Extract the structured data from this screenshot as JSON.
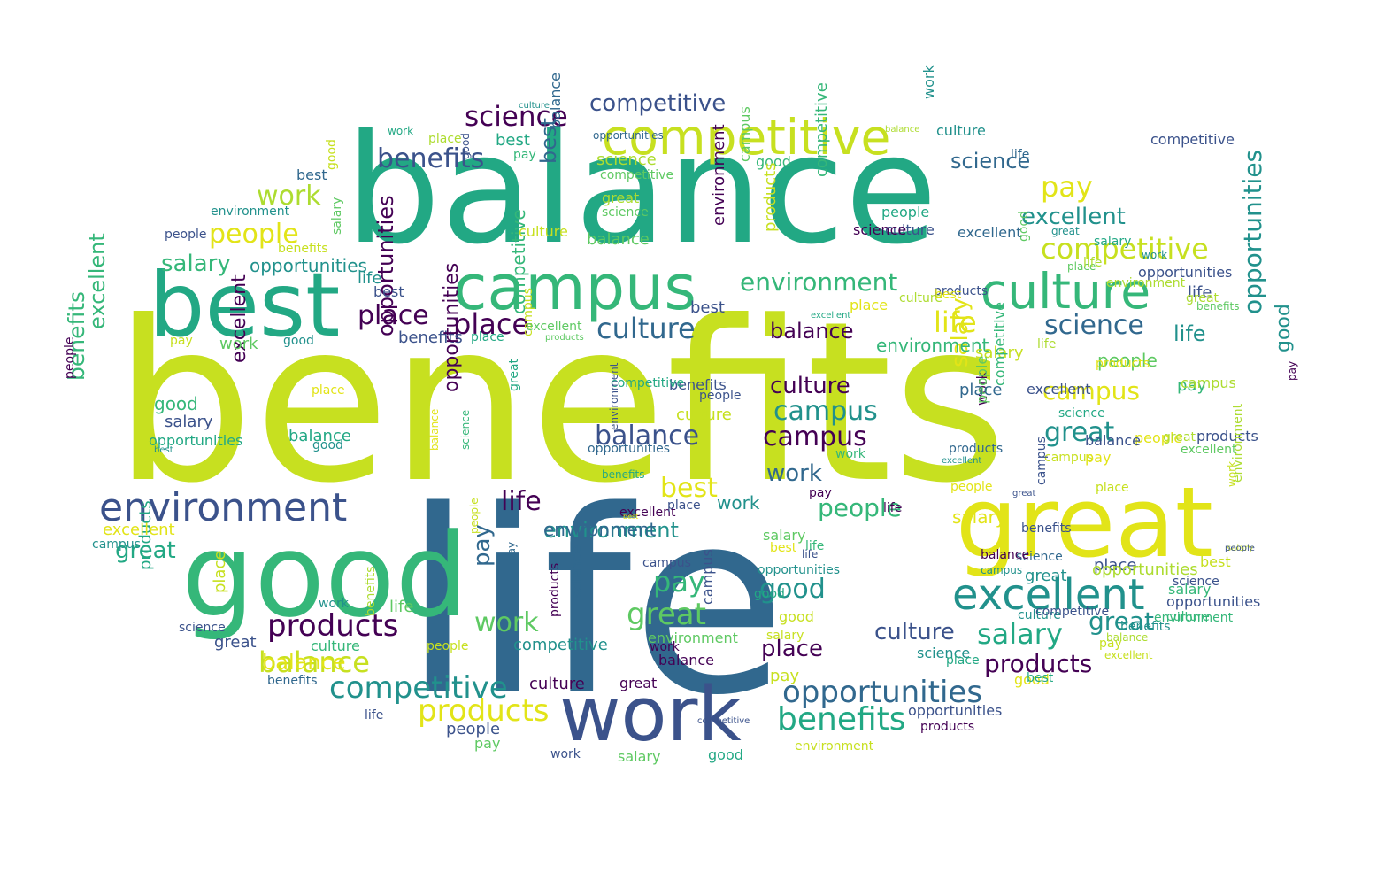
{
  "word_cloud": {
    "palette": {
      "c1": "#440154",
      "c2": "#3b528b",
      "c3": "#31688e",
      "c4": "#21918c",
      "c5": "#22a884",
      "c6": "#35b779",
      "c7": "#5ec962",
      "c8": "#addc30",
      "c9": "#c7e020",
      "c10": "#e2e418"
    },
    "words": [
      {
        "text": "benefits",
        "color": "c9"
      },
      {
        "text": "balance",
        "color": "c5"
      },
      {
        "text": "life",
        "color": "c3"
      },
      {
        "text": "good",
        "color": "c6"
      },
      {
        "text": "great",
        "color": "c10"
      },
      {
        "text": "best",
        "color": "c5"
      },
      {
        "text": "campus",
        "color": "c6"
      },
      {
        "text": "competitive",
        "color": "c9"
      },
      {
        "text": "work",
        "color": "c2"
      },
      {
        "text": "culture",
        "color": "c6"
      },
      {
        "text": "environment",
        "color": "c2"
      },
      {
        "text": "excellent",
        "color": "c4"
      },
      {
        "text": "competitive",
        "color": "c4"
      },
      {
        "text": "benefits",
        "color": "c5"
      },
      {
        "text": "products",
        "color": "c1"
      },
      {
        "text": "opportunities",
        "color": "c3"
      },
      {
        "text": "products",
        "color": "c10"
      },
      {
        "text": "opportunities",
        "color": "c4"
      },
      {
        "text": "balance",
        "color": "c9"
      },
      {
        "text": "competitive",
        "color": "c9"
      },
      {
        "text": "benefits",
        "color": "c6"
      },
      {
        "text": "science",
        "color": "c1"
      },
      {
        "text": "competitive",
        "color": "c2"
      },
      {
        "text": "benefits",
        "color": "c2"
      },
      {
        "text": "work",
        "color": "c8"
      },
      {
        "text": "people",
        "color": "c10"
      },
      {
        "text": "salary",
        "color": "c6"
      },
      {
        "text": "place",
        "color": "c1"
      },
      {
        "text": "place",
        "color": "c1"
      },
      {
        "text": "culture",
        "color": "c3"
      },
      {
        "text": "balance",
        "color": "c2"
      },
      {
        "text": "science",
        "color": "c3"
      },
      {
        "text": "pay",
        "color": "c10"
      },
      {
        "text": "excellent",
        "color": "c4"
      },
      {
        "text": "excellent",
        "color": "c6"
      },
      {
        "text": "environment",
        "color": "c6"
      },
      {
        "text": "life",
        "color": "c10"
      },
      {
        "text": "science",
        "color": "c3"
      },
      {
        "text": "life",
        "color": "c4"
      },
      {
        "text": "culture",
        "color": "c1"
      },
      {
        "text": "campus",
        "color": "c4"
      },
      {
        "text": "campus",
        "color": "c1"
      },
      {
        "text": "balance",
        "color": "c1"
      },
      {
        "text": "great",
        "color": "c4"
      },
      {
        "text": "campus",
        "color": "c10"
      },
      {
        "text": "life",
        "color": "c1"
      },
      {
        "text": "environment",
        "color": "c4"
      },
      {
        "text": "best",
        "color": "c10"
      },
      {
        "text": "people",
        "color": "c6"
      },
      {
        "text": "work",
        "color": "c3"
      },
      {
        "text": "pay",
        "color": "c6"
      },
      {
        "text": "great",
        "color": "c7"
      },
      {
        "text": "work",
        "color": "c7"
      },
      {
        "text": "good",
        "color": "c4"
      },
      {
        "text": "salary",
        "color": "c5"
      },
      {
        "text": "culture",
        "color": "c2"
      },
      {
        "text": "place",
        "color": "c1"
      },
      {
        "text": "good",
        "color": "c4"
      },
      {
        "text": "great",
        "color": "c4"
      },
      {
        "text": "products",
        "color": "c1"
      },
      {
        "text": "pay",
        "color": "c3"
      },
      {
        "text": "salary",
        "color": "c10"
      },
      {
        "text": "balance",
        "color": "c10"
      },
      {
        "text": "great",
        "color": "c5"
      },
      {
        "text": "opportunities",
        "color": "c1"
      },
      {
        "text": "good",
        "color": "c6"
      },
      {
        "text": "pay",
        "color": "c6"
      },
      {
        "text": "excellent",
        "color": "c1"
      },
      {
        "text": "competitive",
        "color": "c6"
      },
      {
        "text": "best",
        "color": "c3"
      },
      {
        "text": "benefits",
        "color": "c2"
      },
      {
        "text": "people",
        "color": "c1"
      },
      {
        "text": "opportunities",
        "color": "c1"
      },
      {
        "text": "environment",
        "color": "c1"
      },
      {
        "text": "work",
        "color": "c4"
      },
      {
        "text": "salary",
        "color": "c10"
      },
      {
        "text": "people",
        "color": "c7"
      },
      {
        "text": "environment",
        "color": "c3"
      },
      {
        "text": "environment",
        "color": "c6"
      },
      {
        "text": "competitive",
        "color": "c6"
      },
      {
        "text": "best",
        "color": "c5"
      },
      {
        "text": "best",
        "color": "c3"
      },
      {
        "text": "life",
        "color": "c1"
      },
      {
        "text": "place",
        "color": "c9"
      },
      {
        "text": "place",
        "color": "c2"
      },
      {
        "text": "science",
        "color": "c8"
      },
      {
        "text": "salary",
        "color": "c9"
      },
      {
        "text": "opportunities",
        "color": "c8"
      },
      {
        "text": "competitive",
        "color": "c6"
      },
      {
        "text": "people",
        "color": "c10"
      },
      {
        "text": "good",
        "color": "c6"
      },
      {
        "text": "work",
        "color": "c1"
      },
      {
        "text": "best",
        "color": "c2"
      },
      {
        "text": "balance",
        "color": "c2"
      },
      {
        "text": "culture",
        "color": "c2"
      },
      {
        "text": "excellent",
        "color": "c3"
      },
      {
        "text": "pay",
        "color": "c9"
      },
      {
        "text": "campus",
        "color": "c8"
      },
      {
        "text": "people",
        "color": "c7"
      },
      {
        "text": "products",
        "color": "c2"
      },
      {
        "text": "opportunities",
        "color": "c2"
      },
      {
        "text": "science",
        "color": "c2"
      },
      {
        "text": "good",
        "color": "c10"
      },
      {
        "text": "best",
        "color": "c9"
      },
      {
        "text": "competitive",
        "color": "c2"
      },
      {
        "text": "culture",
        "color": "c9"
      },
      {
        "text": "work",
        "color": "c4"
      },
      {
        "text": "life",
        "color": "c2"
      },
      {
        "text": "campus",
        "color": "c2"
      },
      {
        "text": "people",
        "color": "c5"
      },
      {
        "text": "salary",
        "color": "c6"
      },
      {
        "text": "pay",
        "color": "c9"
      },
      {
        "text": "great",
        "color": "c8"
      },
      {
        "text": "excellent",
        "color": "c7"
      },
      {
        "text": "environment",
        "color": "c8"
      },
      {
        "text": "good",
        "color": "c9"
      },
      {
        "text": "good",
        "color": "c2"
      },
      {
        "text": "place",
        "color": "c8"
      },
      {
        "text": "work",
        "color": "c5"
      },
      {
        "text": "culture",
        "color": "c4"
      },
      {
        "text": "life",
        "color": "c3"
      },
      {
        "text": "balance",
        "color": "c3"
      },
      {
        "text": "pay",
        "color": "c6"
      },
      {
        "text": "opportunities",
        "color": "c3"
      },
      {
        "text": "balance",
        "color": "c8"
      },
      {
        "text": "great",
        "color": "c4"
      },
      {
        "text": "science",
        "color": "c1"
      },
      {
        "text": "place",
        "color": "c7"
      },
      {
        "text": "culture",
        "color": "c8"
      },
      {
        "text": "products",
        "color": "c2"
      },
      {
        "text": "environment",
        "color": "c8"
      },
      {
        "text": "great",
        "color": "c8"
      },
      {
        "text": "benefits",
        "color": "c7"
      },
      {
        "text": "life",
        "color": "c8"
      },
      {
        "text": "products",
        "color": "c10"
      },
      {
        "text": "excellent",
        "color": "c2"
      },
      {
        "text": "science",
        "color": "c5"
      },
      {
        "text": "campus",
        "color": "c9"
      },
      {
        "text": "pay",
        "color": "c10"
      },
      {
        "text": "place",
        "color": "c9"
      },
      {
        "text": "people",
        "color": "c10"
      },
      {
        "text": "great",
        "color": "c2"
      },
      {
        "text": "campus",
        "color": "c2"
      },
      {
        "text": "work",
        "color": "c9"
      },
      {
        "text": "salary",
        "color": "c9"
      },
      {
        "text": "benefits",
        "color": "c2"
      },
      {
        "text": "culture",
        "color": "c4"
      },
      {
        "text": "balance",
        "color": "c8"
      },
      {
        "text": "excellent",
        "color": "c9"
      },
      {
        "text": "best",
        "color": "c5"
      },
      {
        "text": "opportunities",
        "color": "c2"
      },
      {
        "text": "products",
        "color": "c1"
      },
      {
        "text": "science",
        "color": "c4"
      },
      {
        "text": "place",
        "color": "c5"
      },
      {
        "text": "environment",
        "color": "c9"
      },
      {
        "text": "competitive",
        "color": "c2"
      },
      {
        "text": "good",
        "color": "c5"
      },
      {
        "text": "salary",
        "color": "c7"
      },
      {
        "text": "work",
        "color": "c2"
      },
      {
        "text": "pay",
        "color": "c7"
      },
      {
        "text": "people",
        "color": "c2"
      },
      {
        "text": "life",
        "color": "c2"
      },
      {
        "text": "benefits",
        "color": "c3"
      },
      {
        "text": "culture",
        "color": "c6"
      },
      {
        "text": "great",
        "color": "c2"
      },
      {
        "text": "science",
        "color": "c2"
      },
      {
        "text": "products",
        "color": "c5"
      },
      {
        "text": "campus",
        "color": "c4"
      },
      {
        "text": "excellent",
        "color": "c10"
      },
      {
        "text": "opportunities",
        "color": "c5"
      },
      {
        "text": "best",
        "color": "c4"
      },
      {
        "text": "salary",
        "color": "c2"
      },
      {
        "text": "place",
        "color": "c10"
      },
      {
        "text": "good",
        "color": "c4"
      },
      {
        "text": "balance",
        "color": "c5"
      },
      {
        "text": "work",
        "color": "c4"
      },
      {
        "text": "life",
        "color": "c7"
      },
      {
        "text": "benefits",
        "color": "c8"
      },
      {
        "text": "people",
        "color": "c9"
      },
      {
        "text": "competitive",
        "color": "c4"
      },
      {
        "text": "culture",
        "color": "c1"
      },
      {
        "text": "great",
        "color": "c1"
      },
      {
        "text": "environment",
        "color": "c7"
      },
      {
        "text": "balance",
        "color": "c1"
      },
      {
        "text": "products",
        "color": "c1"
      },
      {
        "text": "science",
        "color": "c3"
      },
      {
        "text": "campus",
        "color": "c2"
      },
      {
        "text": "excellent",
        "color": "c1"
      },
      {
        "text": "best",
        "color": "c10"
      },
      {
        "text": "place",
        "color": "c2"
      },
      {
        "text": "life",
        "color": "c6"
      },
      {
        "text": "salary",
        "color": "c7"
      },
      {
        "text": "good",
        "color": "c9"
      },
      {
        "text": "opportunities",
        "color": "c4"
      },
      {
        "text": "work",
        "color": "c6"
      },
      {
        "text": "pay",
        "color": "c1"
      },
      {
        "text": "people",
        "color": "c2"
      },
      {
        "text": "benefits",
        "color": "c2"
      },
      {
        "text": "culture",
        "color": "c9"
      },
      {
        "text": "competitive",
        "color": "c5"
      },
      {
        "text": "great",
        "color": "c5"
      },
      {
        "text": "science",
        "color": "c6"
      },
      {
        "text": "balance",
        "color": "c10"
      },
      {
        "text": "campus",
        "color": "c9"
      },
      {
        "text": "products",
        "color": "c7"
      },
      {
        "text": "excellent",
        "color": "c7"
      },
      {
        "text": "place",
        "color": "c5"
      },
      {
        "text": "best",
        "color": "c2"
      },
      {
        "text": "life",
        "color": "c4"
      },
      {
        "text": "salary",
        "color": "c7"
      },
      {
        "text": "good",
        "color": "c4"
      },
      {
        "text": "work",
        "color": "c7"
      },
      {
        "text": "pay",
        "color": "c9"
      },
      {
        "text": "people",
        "color": "c2"
      },
      {
        "text": "environment",
        "color": "c4"
      },
      {
        "text": "benefits",
        "color": "c9"
      },
      {
        "text": "opportunities",
        "color": "c4"
      },
      {
        "text": "culture",
        "color": "c4"
      },
      {
        "text": "competitive",
        "color": "c7"
      },
      {
        "text": "great",
        "color": "c8"
      },
      {
        "text": "science",
        "color": "c7"
      },
      {
        "text": "balance",
        "color": "c7"
      },
      {
        "text": "campus",
        "color": "c7"
      },
      {
        "text": "products",
        "color": "c9"
      },
      {
        "text": "excellent",
        "color": "c5"
      },
      {
        "text": "place",
        "color": "c10"
      },
      {
        "text": "best",
        "color": "c10"
      },
      {
        "text": "life",
        "color": "c8"
      },
      {
        "text": "salary",
        "color": "c5"
      },
      {
        "text": "good",
        "color": "c7"
      },
      {
        "text": "work",
        "color": "c4"
      },
      {
        "text": "pay",
        "color": "c1"
      },
      {
        "text": "people",
        "color": "c2"
      },
      {
        "text": "environment",
        "color": "c6"
      },
      {
        "text": "benefits",
        "color": "c4"
      },
      {
        "text": "opportunities",
        "color": "c2"
      },
      {
        "text": "culture",
        "color": "c6"
      },
      {
        "text": "competitive",
        "color": "c2"
      },
      {
        "text": "great",
        "color": "c4"
      },
      {
        "text": "science",
        "color": "c3"
      },
      {
        "text": "balance",
        "color": "c1"
      },
      {
        "text": "campus",
        "color": "c4"
      },
      {
        "text": "products",
        "color": "c3"
      },
      {
        "text": "excellent",
        "color": "c4"
      },
      {
        "text": "place",
        "color": "c3"
      },
      {
        "text": "best",
        "color": "c10"
      },
      {
        "text": "life",
        "color": "c2"
      },
      {
        "text": "salary",
        "color": "c9"
      },
      {
        "text": "good",
        "color": "c5"
      },
      {
        "text": "work",
        "color": "c1"
      },
      {
        "text": "pay",
        "color": "c3"
      },
      {
        "text": "people",
        "color": "c9"
      },
      {
        "text": "environment",
        "color": "c2"
      },
      {
        "text": "benefits",
        "color": "c5"
      },
      {
        "text": "opportunities",
        "color": "c3"
      },
      {
        "text": "culture",
        "color": "c1"
      },
      {
        "text": "competitive",
        "color": "c2"
      },
      {
        "text": "great",
        "color": "c1"
      },
      {
        "text": "science",
        "color": "c4"
      },
      {
        "text": "balance",
        "color": "c1"
      },
      {
        "text": "campus",
        "color": "c6"
      },
      {
        "text": "products",
        "color": "c2"
      },
      {
        "text": "excellent",
        "color": "c10"
      },
      {
        "text": "place",
        "color": "c6"
      },
      {
        "text": "best",
        "color": "c5"
      },
      {
        "text": "life",
        "color": "c9"
      },
      {
        "text": "salary",
        "color": "c9"
      },
      {
        "text": "good",
        "color": "c7"
      },
      {
        "text": "work",
        "color": "c9"
      },
      {
        "text": "pay",
        "color": "c7"
      },
      {
        "text": "people",
        "color": "c7"
      },
      {
        "text": "environment",
        "color": "c7"
      },
      {
        "text": "benefits",
        "color": "c2"
      },
      {
        "text": "opportunities",
        "color": "c4"
      },
      {
        "text": "culture",
        "color": "c9"
      },
      {
        "text": "competitive",
        "color": "c6"
      },
      {
        "text": "great",
        "color": "c1"
      },
      {
        "text": "science",
        "color": "c2"
      },
      {
        "text": "balance",
        "color": "c6"
      },
      {
        "text": "campus",
        "color": "c4"
      },
      {
        "text": "products",
        "color": "c10"
      },
      {
        "text": "excellent",
        "color": "c7"
      },
      {
        "text": "place",
        "color": "c8"
      },
      {
        "text": "best",
        "color": "c3"
      },
      {
        "text": "life",
        "color": "c1"
      },
      {
        "text": "salary",
        "color": "c3"
      },
      {
        "text": "good",
        "color": "c6"
      },
      {
        "text": "work",
        "color": "c2"
      },
      {
        "text": "pay",
        "color": "c2"
      },
      {
        "text": "people",
        "color": "c3"
      },
      {
        "text": "environment",
        "color": "c4"
      },
      {
        "text": "benefits",
        "color": "c2"
      },
      {
        "text": "opportunities",
        "color": "c4"
      },
      {
        "text": "culture",
        "color": "c1"
      },
      {
        "text": "competitive",
        "color": "c4"
      }
    ]
  }
}
